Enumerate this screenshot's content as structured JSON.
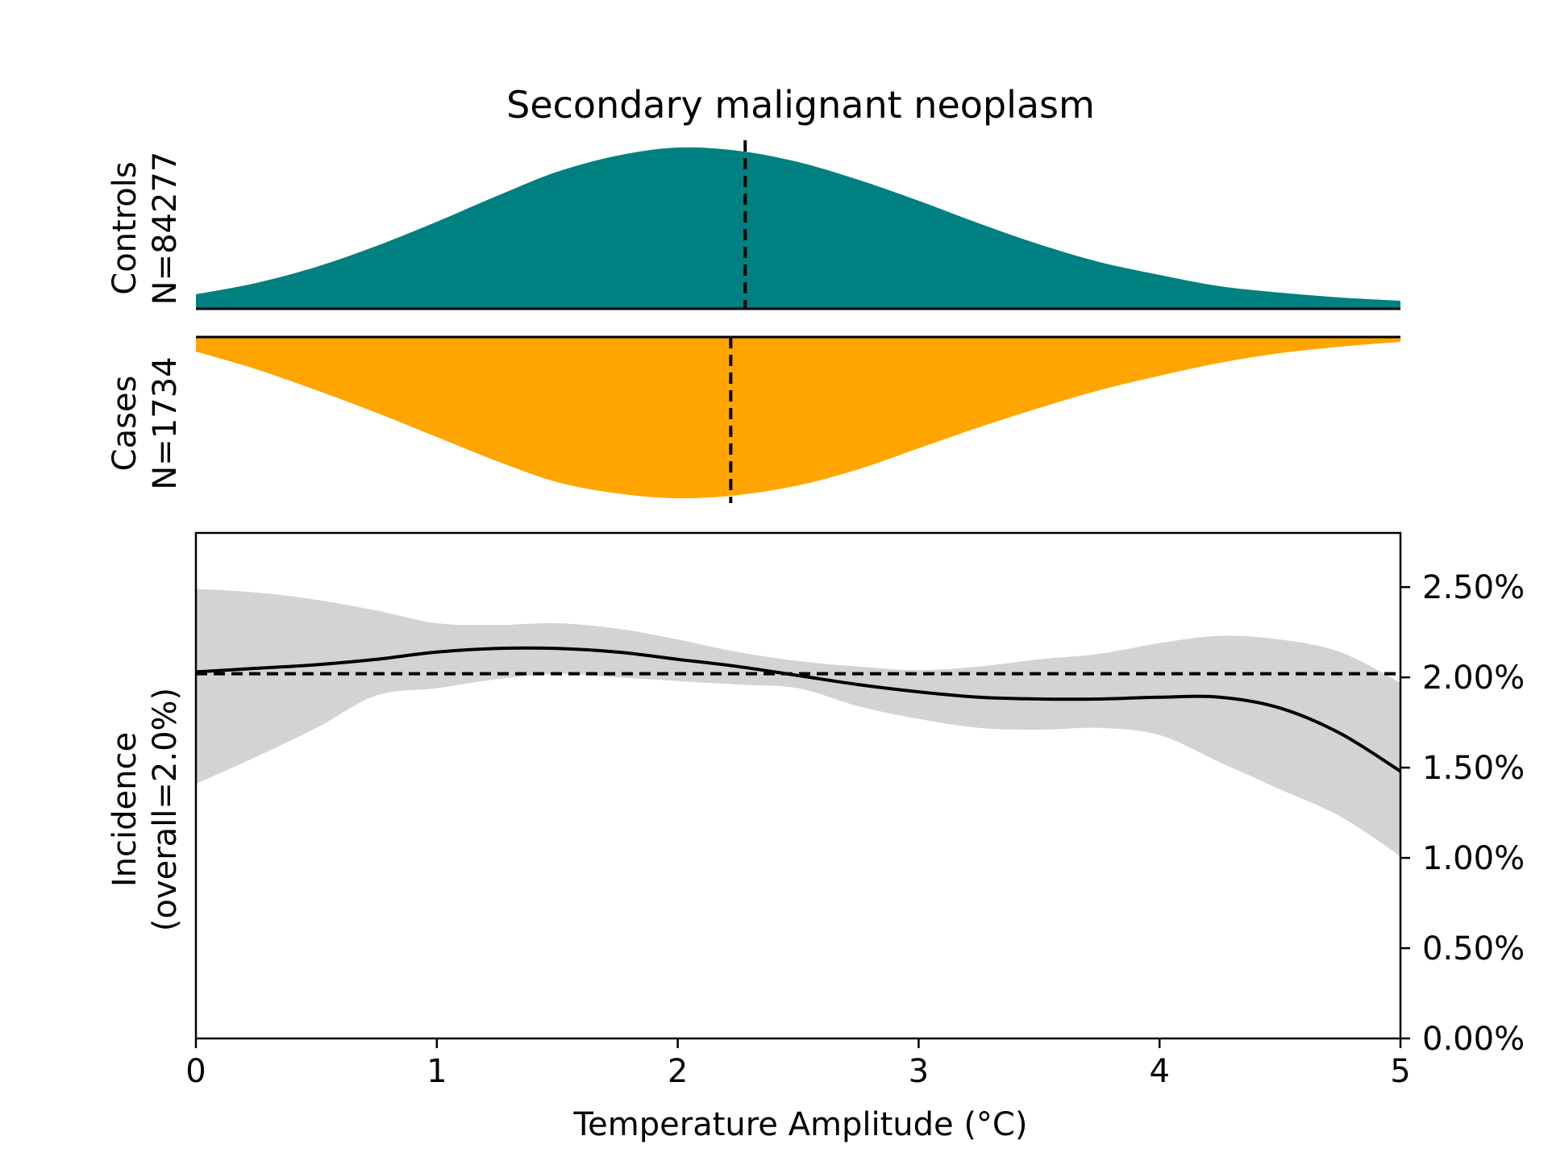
{
  "chart_data": {
    "type": "area",
    "title": "Secondary malignant neoplasm",
    "xlabel": "Temperature Amplitude (°C)",
    "xlim": [
      0,
      5
    ],
    "x_ticks": [
      0,
      1,
      2,
      3,
      4,
      5
    ],
    "x_tick_labels": [
      "0",
      "1",
      "2",
      "3",
      "4",
      "5"
    ],
    "colors": {
      "controls": "#008080",
      "cases": "#FFA500",
      "ci_band": "#D3D3D3",
      "line": "#000000"
    },
    "distributions": {
      "controls": {
        "label_line1": "Controls",
        "label_line2": "N=84277",
        "median": 2.28,
        "x": [
          0,
          0.25,
          0.5,
          0.75,
          1.0,
          1.25,
          1.5,
          1.75,
          2.0,
          2.25,
          2.5,
          2.75,
          3.0,
          3.25,
          3.5,
          3.75,
          4.0,
          4.25,
          4.5,
          4.75,
          5.0
        ],
        "density": [
          0.09,
          0.16,
          0.26,
          0.39,
          0.54,
          0.7,
          0.85,
          0.95,
          1.0,
          0.98,
          0.91,
          0.8,
          0.67,
          0.53,
          0.4,
          0.29,
          0.21,
          0.14,
          0.1,
          0.07,
          0.05
        ]
      },
      "cases": {
        "label_line1": "Cases",
        "label_line2": "N=1734",
        "median": 2.22,
        "x": [
          0,
          0.25,
          0.5,
          0.75,
          1.0,
          1.25,
          1.5,
          1.75,
          2.0,
          2.25,
          2.5,
          2.75,
          3.0,
          3.25,
          3.5,
          3.75,
          4.0,
          4.25,
          4.5,
          4.75,
          5.0
        ],
        "density": [
          0.09,
          0.2,
          0.33,
          0.47,
          0.62,
          0.77,
          0.9,
          0.97,
          1.0,
          0.98,
          0.92,
          0.82,
          0.69,
          0.56,
          0.44,
          0.33,
          0.24,
          0.16,
          0.1,
          0.06,
          0.03
        ]
      }
    },
    "incidence": {
      "ylabel_line1": "Incidence",
      "ylabel_line2": "(overall=2.0%)",
      "ylim": [
        0,
        2.8
      ],
      "y_ticks": [
        0,
        0.5,
        1.0,
        1.5,
        2.0,
        2.5
      ],
      "y_tick_labels": [
        "0.00%",
        "0.50%",
        "1.00%",
        "1.50%",
        "2.00%",
        "2.50%"
      ],
      "overall": 2.02,
      "x": [
        0,
        0.25,
        0.5,
        0.75,
        1.0,
        1.25,
        1.5,
        1.75,
        2.0,
        2.25,
        2.5,
        2.75,
        3.0,
        3.25,
        3.5,
        3.75,
        4.0,
        4.25,
        4.5,
        4.75,
        5.0
      ],
      "y": [
        2.03,
        2.05,
        2.07,
        2.1,
        2.14,
        2.16,
        2.16,
        2.14,
        2.1,
        2.06,
        2.01,
        1.96,
        1.92,
        1.89,
        1.88,
        1.88,
        1.89,
        1.89,
        1.83,
        1.69,
        1.48
      ],
      "ci_lower": [
        1.41,
        1.56,
        1.72,
        1.9,
        1.94,
        1.99,
        2.02,
        2.0,
        1.98,
        1.96,
        1.94,
        1.84,
        1.77,
        1.72,
        1.71,
        1.72,
        1.68,
        1.53,
        1.38,
        1.23,
        1.01
      ],
      "ci_upper": [
        2.49,
        2.47,
        2.43,
        2.37,
        2.3,
        2.29,
        2.3,
        2.27,
        2.21,
        2.14,
        2.09,
        2.06,
        2.04,
        2.06,
        2.1,
        2.13,
        2.19,
        2.23,
        2.21,
        2.14,
        1.97
      ]
    }
  }
}
